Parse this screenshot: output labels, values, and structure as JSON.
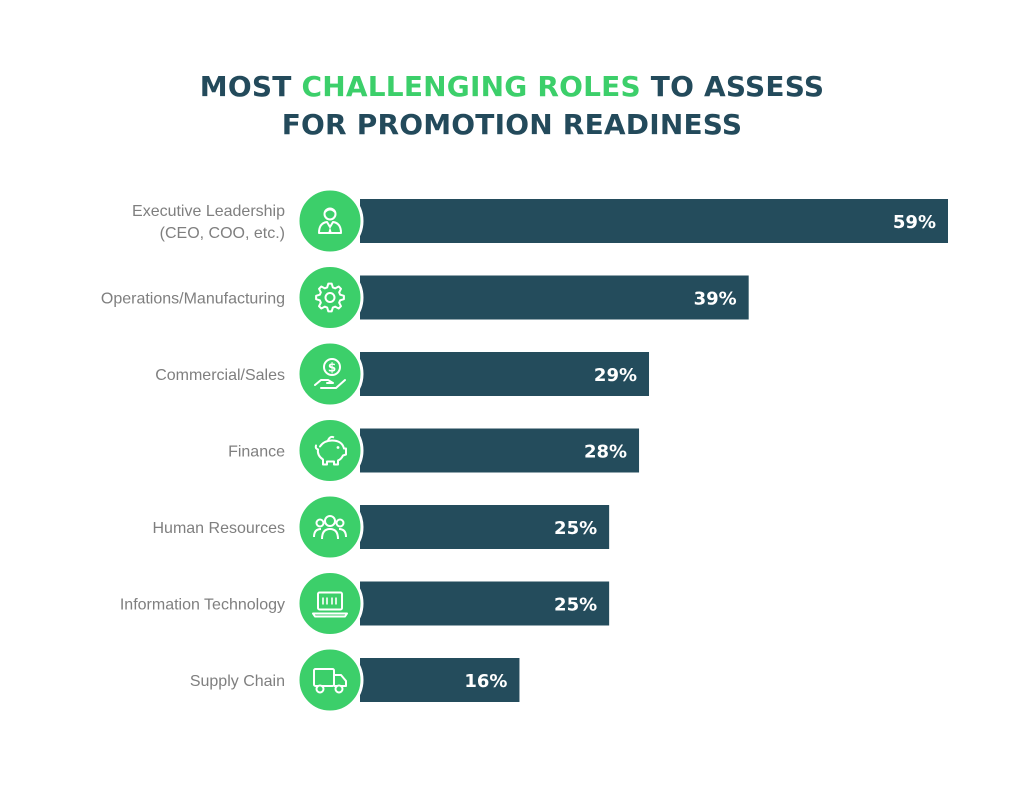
{
  "title": {
    "line1_pre": "MOST ",
    "line1_highlight": "CHALLENGING ROLES",
    "line1_post": " TO ASSESS",
    "line2": "FOR PROMOTION READINESS"
  },
  "colors": {
    "bar": "#244c5c",
    "icon_circle": "#3ccf6a",
    "title": "#234a5b",
    "highlight": "#3ccf6a",
    "label": "#7f7f7f",
    "value_text": "#ffffff"
  },
  "chart_data": {
    "type": "bar",
    "orientation": "horizontal",
    "categories": [
      [
        "Executive Leadership",
        "(CEO, COO, etc.)"
      ],
      [
        "Operations/Manufacturing"
      ],
      [
        "Commercial/Sales"
      ],
      [
        "Finance"
      ],
      [
        "Human Resources"
      ],
      [
        "Information Technology"
      ],
      [
        "Supply Chain"
      ]
    ],
    "values": [
      59,
      39,
      29,
      28,
      25,
      25,
      16
    ],
    "value_labels": [
      "59%",
      "39%",
      "29%",
      "28%",
      "25%",
      "25%",
      "16%"
    ],
    "icons": [
      "executive-person-icon",
      "gear-icon",
      "money-hand-icon",
      "piggy-bank-icon",
      "people-group-icon",
      "laptop-code-icon",
      "truck-icon"
    ],
    "unit": "%",
    "xlim": [
      0,
      59
    ]
  }
}
